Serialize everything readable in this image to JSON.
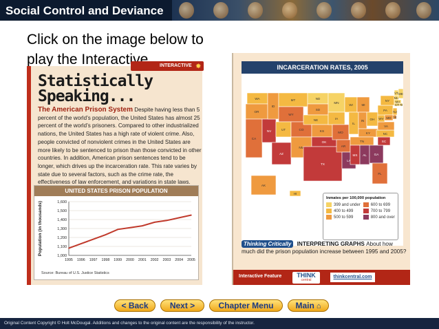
{
  "header": {
    "title": "Social Control and Deviance"
  },
  "instruction": "Click on the image below to play the Interactive.",
  "left_page": {
    "tag": "INTERACTIVE",
    "title_line1": "Statistically",
    "title_line2": "Speaking...",
    "subhead": "The American Prison System",
    "body": "Despite having less than 5 percent of the world’s population, the United States has almost 25 percent of the world’s prisoners. Compared to other industrialized nations, the United States has a high rate of violent crime. Also, people convicted of nonviolent crimes in the United States are more likely to be sentenced to prison than those convicted in other countries. In addition, American prison sentences tend to be longer, which drives up the incarceration rate. This rate varies by state due to several factors, such as the crime rate, the effectiveness of law enforcement, and variations in state laws.",
    "graph_title": "UNITED STATES PRISON POPULATION",
    "graph_ylabel": "Population (in thousands)",
    "graph_source": "Source: Bureau of U.S. Justice Statistics"
  },
  "chart_data": {
    "type": "line",
    "title": "UNITED STATES PRISON POPULATION",
    "xlabel": "",
    "ylabel": "Population (in thousands)",
    "x": [
      "1995",
      "1996",
      "1997",
      "1998",
      "1999",
      "2000",
      "2001",
      "2002",
      "2003",
      "2004",
      "2005"
    ],
    "series": [
      {
        "values": [
          1080,
          1130,
          1180,
          1230,
          1290,
          1310,
          1330,
          1370,
          1390,
          1420,
          1450
        ]
      }
    ],
    "y_ticks": [
      "1,000",
      "1,100",
      "1,200",
      "1,300",
      "1,400",
      "1,500",
      "1,600"
    ],
    "ylim": [
      1000,
      1600
    ],
    "grid": true,
    "line_color": "#c0392b"
  },
  "right_page": {
    "map_title": "INCARCERATION RATES, 2005",
    "legend_title": "Inmates per 100,000 population",
    "legend": [
      {
        "label": "399 and under",
        "color": "#f6d365"
      },
      {
        "label": "600 to 699",
        "color": "#e0703a"
      },
      {
        "label": "400 to 499",
        "color": "#f4b942"
      },
      {
        "label": "700 to 799",
        "color": "#c23a3a"
      },
      {
        "label": "500 to 599",
        "color": "#ef9a3f"
      },
      {
        "label": "800 and over",
        "color": "#8c3a5e"
      }
    ],
    "states": {
      "WA": "WA",
      "OR": "OR",
      "CA": "CA",
      "NV": "NV",
      "ID": "ID",
      "MT": "MT",
      "WY": "WY",
      "UT": "UT",
      "AZ": "AZ",
      "CO": "CO",
      "NM": "NM",
      "ND": "ND",
      "SD": "SD",
      "NE": "NE",
      "KS": "KS",
      "OK": "OK",
      "TX": "TX",
      "MN": "MN",
      "IA": "IA",
      "MO": "MO",
      "AR": "AR",
      "LA": "LA",
      "WI": "WI",
      "IL": "IL",
      "MI": "MI",
      "IN": "IN",
      "OH": "OH",
      "KY": "KY",
      "TN": "TN",
      "MS": "MS",
      "AL": "AL",
      "GA": "GA",
      "FL": "FL",
      "SC": "SC",
      "NC": "NC",
      "VA": "VA",
      "WV": "WV",
      "PA": "PA",
      "NY": "NY",
      "VT": "VT",
      "NH": "NH",
      "ME": "ME",
      "MA": "MA",
      "RI": "RI",
      "CT": "CT",
      "NJ": "NJ",
      "DE": "DE",
      "MD": "MD",
      "AK": "AK",
      "HI": "HI"
    },
    "think_badge": "Thinking Critically",
    "think_heading": "INTERPRETING GRAPHS",
    "think_question": "About how much did the prison population increase between 1995 and 2005?",
    "feature_label": "Interactive Feature",
    "think_logo_top": "THINK",
    "think_logo_bottom": "central",
    "think_link": "thinkcentral.com"
  },
  "nav": {
    "back": "< Back",
    "next": "Next >",
    "chapter_menu": "Chapter Menu",
    "main": "Main"
  },
  "footer": {
    "copyright": "Original Content Copyright © Holt McDougal. Additions and changes to the original content are the responsibility of the instructor."
  }
}
